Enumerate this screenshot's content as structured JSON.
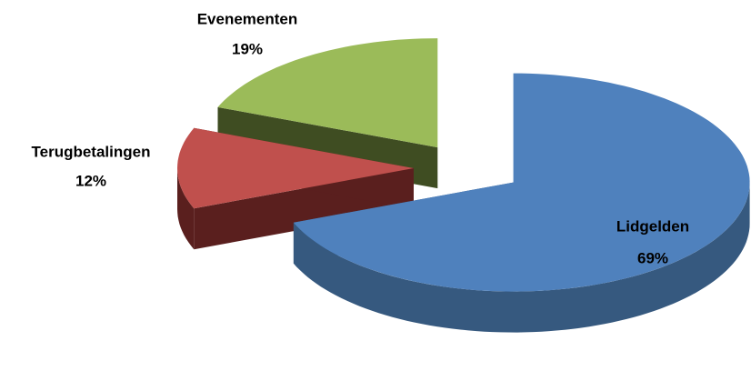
{
  "chart_data": {
    "type": "pie3d",
    "categories": [
      "Lidgelden",
      "Terugbetalingen",
      "Evenementen"
    ],
    "values": [
      69,
      12,
      19
    ],
    "value_labels": [
      "69%",
      "12%",
      "19%"
    ],
    "colors": [
      "#4f81bd",
      "#c0504d",
      "#9bbb59"
    ],
    "side_colors": [
      "#36597f",
      "#5a1f1e",
      "#3f4d22"
    ]
  }
}
